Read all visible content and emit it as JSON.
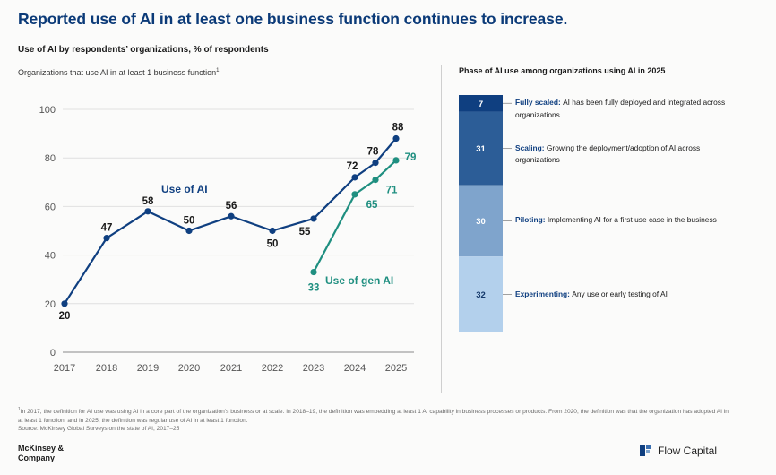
{
  "header": {
    "title": "Reported use of AI in at least one business function continues to increase.",
    "subtitle": "Use of AI by respondents’ organizations, % of respondents"
  },
  "chart_data": [
    {
      "type": "line",
      "title": "Organizations that use AI in at least 1 business function",
      "title_footnote_marker": "1",
      "xlabel": "",
      "ylabel": "",
      "ylim": [
        0,
        100
      ],
      "yticks": [
        0,
        20,
        40,
        60,
        80,
        100
      ],
      "x": [
        "2017",
        "2018",
        "2019",
        "2020",
        "2021",
        "2022",
        "2023",
        "2024",
        "2024.5",
        "2025"
      ],
      "xtick_labels": [
        "2017",
        "2018",
        "2019",
        "2020",
        "2021",
        "2022",
        "2023",
        "2024",
        "2025"
      ],
      "grid": true,
      "series": [
        {
          "name": "Use of AI",
          "color": "#0f3f80",
          "points": [
            {
              "x": "2017",
              "y": 20
            },
            {
              "x": "2018",
              "y": 47
            },
            {
              "x": "2019",
              "y": 58
            },
            {
              "x": "2020",
              "y": 50
            },
            {
              "x": "2021",
              "y": 56
            },
            {
              "x": "2022",
              "y": 50
            },
            {
              "x": "2023",
              "y": 55
            },
            {
              "x": "2024",
              "y": 72
            },
            {
              "x": "2024.5",
              "y": 78
            },
            {
              "x": "2025",
              "y": 88
            }
          ]
        },
        {
          "name": "Use of gen AI",
          "color": "#1f8f80",
          "points": [
            {
              "x": "2023",
              "y": 33
            },
            {
              "x": "2024",
              "y": 65
            },
            {
              "x": "2024.5",
              "y": 71
            },
            {
              "x": "2025",
              "y": 79
            }
          ]
        }
      ]
    },
    {
      "type": "bar",
      "title": "Phase of AI use among organizations using AI in 2025",
      "stacked": true,
      "segments": [
        {
          "value": 7,
          "label": "Fully scaled:",
          "description": "AI has been fully deployed and integrated across organizations",
          "color": "#0f3f80",
          "text_color": "#ffffff"
        },
        {
          "value": 31,
          "label": "Scaling:",
          "description": "Growing the deployment/adoption of AI across organizations",
          "color": "#2c5d97",
          "text_color": "#ffffff"
        },
        {
          "value": 30,
          "label": "Piloting:",
          "description": "Implementing AI for a first use case in the business",
          "color": "#7fa4cc",
          "text_color": "#ffffff"
        },
        {
          "value": 32,
          "label": "Experimenting:",
          "description": "Any use or early testing of AI",
          "color": "#b3d0ec",
          "text_color": "#14386a"
        }
      ]
    }
  ],
  "footnote": {
    "marker": "1",
    "text": "In 2017, the definition for AI use was using AI in a core part of the organization’s business or at scale. In 2018–19, the definition was embedding at least 1 AI capability in business processes or products. From 2020, the definition was that the organization has adopted AI in at least 1 function, and in 2025, the definition was regular use of AI in at least 1 function.",
    "source": "Source: McKinsey Global Surveys on the state of AI, 2017–25"
  },
  "logos": {
    "left_line1": "McKinsey &",
    "left_line2": "Company",
    "right_text": "Flow Capital",
    "right_icon": "flow-capital-logo-icon"
  }
}
